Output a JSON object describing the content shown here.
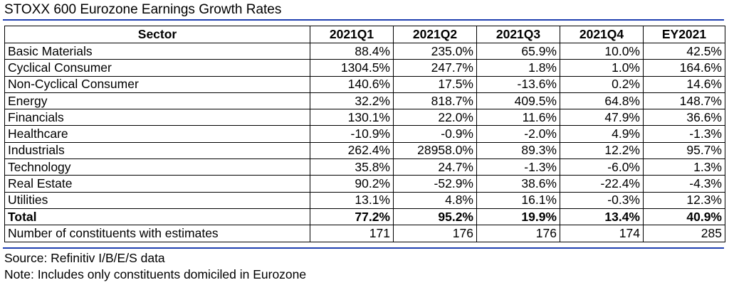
{
  "title": "STOXX 600 Eurozone Earnings Growth Rates",
  "chart_data": {
    "type": "table",
    "title": "STOXX 600 Eurozone Earnings Growth Rates",
    "columns": [
      "Sector",
      "2021Q1",
      "2021Q2",
      "2021Q3",
      "2021Q4",
      "EY2021"
    ],
    "rows": [
      {
        "sector": "Basic Materials",
        "values": [
          "88.4%",
          "235.0%",
          "65.9%",
          "10.0%",
          "42.5%"
        ]
      },
      {
        "sector": "Cyclical Consumer",
        "values": [
          "1304.5%",
          "247.7%",
          "1.8%",
          "1.0%",
          "164.6%"
        ]
      },
      {
        "sector": "Non-Cyclical Consumer",
        "values": [
          "140.6%",
          "17.5%",
          "-13.6%",
          "0.2%",
          "14.6%"
        ]
      },
      {
        "sector": "Energy",
        "values": [
          "32.2%",
          "818.7%",
          "409.5%",
          "64.8%",
          "148.7%"
        ]
      },
      {
        "sector": "Financials",
        "values": [
          "130.1%",
          "22.0%",
          "11.6%",
          "47.9%",
          "36.6%"
        ]
      },
      {
        "sector": "Healthcare",
        "values": [
          "-10.9%",
          "-0.9%",
          "-2.0%",
          "4.9%",
          "-1.3%"
        ]
      },
      {
        "sector": "Industrials",
        "values": [
          "262.4%",
          "28958.0%",
          "89.3%",
          "12.2%",
          "95.7%"
        ]
      },
      {
        "sector": "Technology",
        "values": [
          "35.8%",
          "24.7%",
          "-1.3%",
          "-6.0%",
          "1.3%"
        ]
      },
      {
        "sector": "Real Estate",
        "values": [
          "90.2%",
          "-52.9%",
          "38.6%",
          "-22.4%",
          "-4.3%"
        ]
      },
      {
        "sector": "Utilities",
        "values": [
          "13.1%",
          "4.8%",
          "16.1%",
          "-0.3%",
          "12.3%"
        ]
      },
      {
        "sector": "Total",
        "values": [
          "77.2%",
          "95.2%",
          "19.9%",
          "13.4%",
          "40.9%"
        ],
        "bold": true
      },
      {
        "sector": "Number of constituents with estimates",
        "values": [
          "171",
          "176",
          "176",
          "174",
          "285"
        ]
      }
    ]
  },
  "source_note": "Source: Refinitiv I/B/E/S data",
  "footnote": "Note: Includes only constituents domiciled in Eurozone",
  "colors": {
    "rule": "#1f3fb0",
    "text": "#000000",
    "border": "#000000"
  }
}
